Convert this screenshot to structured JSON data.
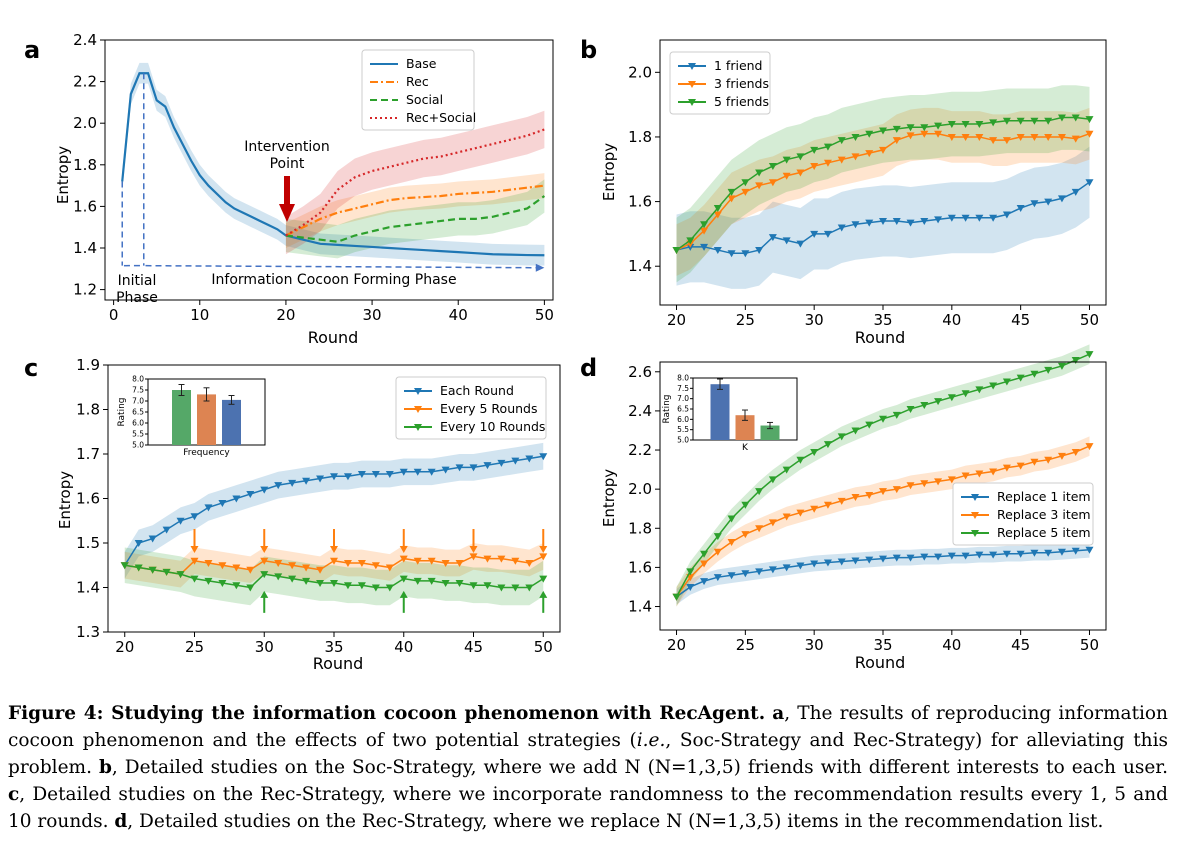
{
  "panels": {
    "a": {
      "letter": "a",
      "ylabel": "Entropy",
      "xlabel": "Round",
      "xticks": [
        "0",
        "10",
        "20",
        "30",
        "40",
        "50"
      ],
      "yticks": [
        "1.2",
        "1.4",
        "1.6",
        "1.8",
        "2.0",
        "2.2",
        "2.4"
      ],
      "annotations": {
        "intervention_line1": "Intervention",
        "intervention_line2": "Point",
        "initial_line1": "Initial",
        "initial_line2": "Phase",
        "forming": "Information Cocoon Forming Phase"
      }
    },
    "b": {
      "letter": "b",
      "ylabel": "Entropy",
      "xlabel": "Round",
      "xticks": [
        "20",
        "25",
        "30",
        "35",
        "40",
        "45",
        "50"
      ],
      "yticks": [
        "1.4",
        "1.6",
        "1.8",
        "2.0"
      ]
    },
    "c": {
      "letter": "c",
      "ylabel": "Entropy",
      "xlabel": "Round",
      "xticks": [
        "20",
        "25",
        "30",
        "35",
        "40",
        "45",
        "50"
      ],
      "yticks": [
        "1.3",
        "1.4",
        "1.5",
        "1.6",
        "1.7",
        "1.8",
        "1.9"
      ],
      "inset": {
        "ylabel": "Rating",
        "xlabel": "Frequency",
        "yticks": [
          "5.0",
          "5.5",
          "6.0",
          "6.5",
          "7.0",
          "7.5",
          "8.0"
        ]
      }
    },
    "d": {
      "letter": "d",
      "ylabel": "Entropy",
      "xlabel": "Round",
      "xticks": [
        "20",
        "25",
        "30",
        "35",
        "40",
        "45",
        "50"
      ],
      "yticks": [
        "1.4",
        "1.6",
        "1.8",
        "2.0",
        "2.2",
        "2.4",
        "2.6"
      ],
      "inset": {
        "ylabel": "Rating",
        "xlabel": "K",
        "yticks": [
          "5.0",
          "5.5",
          "6.0",
          "6.5",
          "7.0",
          "7.5",
          "8.0"
        ]
      }
    }
  },
  "caption": {
    "label": "Figure 4:",
    "title": "Studying the information cocoon phenomenon with RecAgent.",
    "a_letter": "a",
    "a_text": ", The results of reproducing information cocoon phenomenon and the effects of two potential strategies (",
    "ie": "i.e.",
    "a_text2": ", Soc-Strategy and Rec-Strategy) for alleviating this problem.",
    "b_letter": "b",
    "b_text": ", Detailed studies on the Soc-Strategy, where we add N (N=1,3,5) friends with different interests to each user.",
    "c_letter": "c",
    "c_text": ", Detailed studies on the Rec-Strategy, where we incorporate randomness to the recommendation results every 1, 5 and 10 rounds.",
    "d_letter": "d",
    "d_text": ", Detailed studies on the Rec-Strategy, where we replace N (N=1,3,5) items in the recommendation list."
  },
  "chart_data": [
    {
      "panel": "a",
      "type": "line",
      "title": "",
      "xlabel": "Round",
      "ylabel": "Entropy",
      "xlim": [
        -1,
        51
      ],
      "ylim": [
        1.15,
        2.4
      ],
      "legend": "top-right",
      "series": [
        {
          "name": "Base",
          "color": "#1f77b4",
          "style": "solid",
          "x": [
            1,
            2,
            3,
            4,
            5,
            6,
            7,
            8,
            9,
            10,
            11,
            12,
            13,
            14,
            15,
            16,
            17,
            18,
            19,
            20,
            22,
            24,
            26,
            28,
            30,
            32,
            34,
            36,
            38,
            40,
            42,
            44,
            46,
            48,
            50
          ],
          "values": [
            1.72,
            2.14,
            2.24,
            2.24,
            2.11,
            2.08,
            1.98,
            1.9,
            1.82,
            1.75,
            1.7,
            1.66,
            1.62,
            1.59,
            1.57,
            1.55,
            1.53,
            1.51,
            1.49,
            1.46,
            1.44,
            1.42,
            1.415,
            1.41,
            1.405,
            1.4,
            1.395,
            1.39,
            1.385,
            1.38,
            1.375,
            1.37,
            1.368,
            1.366,
            1.365
          ],
          "band": 0.05
        },
        {
          "name": "Rec",
          "color": "#ff7f0e",
          "style": "dashdot",
          "x": [
            20,
            22,
            24,
            26,
            28,
            30,
            32,
            34,
            36,
            38,
            40,
            42,
            44,
            46,
            48,
            50
          ],
          "values": [
            1.46,
            1.5,
            1.54,
            1.57,
            1.59,
            1.61,
            1.63,
            1.64,
            1.645,
            1.65,
            1.66,
            1.665,
            1.67,
            1.68,
            1.69,
            1.7
          ],
          "band": 0.06
        },
        {
          "name": "Social",
          "color": "#2ca02c",
          "style": "dashed",
          "x": [
            20,
            22,
            24,
            26,
            28,
            30,
            32,
            34,
            36,
            38,
            40,
            42,
            44,
            46,
            48,
            50
          ],
          "values": [
            1.46,
            1.45,
            1.44,
            1.43,
            1.46,
            1.48,
            1.5,
            1.51,
            1.52,
            1.53,
            1.54,
            1.54,
            1.55,
            1.57,
            1.59,
            1.65
          ],
          "band": 0.08
        },
        {
          "name": "Rec+Social",
          "color": "#d62728",
          "style": "dotted",
          "x": [
            20,
            22,
            24,
            26,
            28,
            30,
            32,
            34,
            36,
            38,
            40,
            42,
            44,
            46,
            48,
            50
          ],
          "values": [
            1.46,
            1.51,
            1.57,
            1.68,
            1.74,
            1.77,
            1.79,
            1.81,
            1.83,
            1.84,
            1.86,
            1.88,
            1.9,
            1.92,
            1.94,
            1.97
          ],
          "band": 0.09
        }
      ]
    },
    {
      "panel": "b",
      "type": "line",
      "title": "",
      "xlabel": "Round",
      "ylabel": "Entropy",
      "xlim": [
        18.8,
        51.2
      ],
      "ylim": [
        1.28,
        2.1
      ],
      "legend": "top-left",
      "x": [
        20,
        21,
        22,
        23,
        24,
        25,
        26,
        27,
        28,
        29,
        30,
        31,
        32,
        33,
        34,
        35,
        36,
        37,
        38,
        39,
        40,
        41,
        42,
        43,
        44,
        45,
        46,
        47,
        48,
        49,
        50
      ],
      "series": [
        {
          "name": "1 friend",
          "color": "#1f77b4",
          "values": [
            1.45,
            1.46,
            1.46,
            1.45,
            1.44,
            1.44,
            1.45,
            1.49,
            1.48,
            1.47,
            1.5,
            1.5,
            1.52,
            1.53,
            1.535,
            1.54,
            1.54,
            1.535,
            1.54,
            1.545,
            1.55,
            1.55,
            1.55,
            1.55,
            1.56,
            1.58,
            1.595,
            1.6,
            1.61,
            1.63,
            1.66
          ],
          "band": 0.11
        },
        {
          "name": "3 friends",
          "color": "#ff7f0e",
          "values": [
            1.45,
            1.47,
            1.51,
            1.56,
            1.61,
            1.63,
            1.65,
            1.66,
            1.68,
            1.69,
            1.71,
            1.72,
            1.73,
            1.74,
            1.75,
            1.76,
            1.79,
            1.805,
            1.81,
            1.81,
            1.8,
            1.8,
            1.8,
            1.79,
            1.79,
            1.8,
            1.8,
            1.8,
            1.8,
            1.795,
            1.81
          ],
          "band": 0.08
        },
        {
          "name": "5 friends",
          "color": "#2ca02c",
          "values": [
            1.45,
            1.48,
            1.53,
            1.58,
            1.63,
            1.66,
            1.69,
            1.71,
            1.73,
            1.74,
            1.76,
            1.77,
            1.79,
            1.8,
            1.81,
            1.82,
            1.825,
            1.83,
            1.83,
            1.835,
            1.84,
            1.84,
            1.84,
            1.845,
            1.85,
            1.85,
            1.85,
            1.85,
            1.86,
            1.86,
            1.855
          ],
          "band": 0.1
        }
      ]
    },
    {
      "panel": "c",
      "type": "line",
      "title": "",
      "xlabel": "Round",
      "ylabel": "Entropy",
      "xlim": [
        18.8,
        51.2
      ],
      "ylim": [
        1.3,
        1.9
      ],
      "legend": "top-right",
      "x": [
        20,
        21,
        22,
        23,
        24,
        25,
        26,
        27,
        28,
        29,
        30,
        31,
        32,
        33,
        34,
        35,
        36,
        37,
        38,
        39,
        40,
        41,
        42,
        43,
        44,
        45,
        46,
        47,
        48,
        49,
        50
      ],
      "series": [
        {
          "name": "Each Round",
          "color": "#1f77b4",
          "values": [
            1.45,
            1.5,
            1.51,
            1.53,
            1.55,
            1.56,
            1.58,
            1.59,
            1.6,
            1.61,
            1.62,
            1.63,
            1.635,
            1.64,
            1.645,
            1.65,
            1.65,
            1.655,
            1.655,
            1.655,
            1.66,
            1.66,
            1.66,
            1.665,
            1.67,
            1.67,
            1.675,
            1.68,
            1.685,
            1.69,
            1.695
          ],
          "band": 0.03
        },
        {
          "name": "Every 5 Rounds",
          "color": "#ff7f0e",
          "values": [
            1.45,
            1.445,
            1.44,
            1.435,
            1.43,
            1.46,
            1.455,
            1.45,
            1.445,
            1.44,
            1.46,
            1.455,
            1.45,
            1.445,
            1.44,
            1.46,
            1.455,
            1.455,
            1.45,
            1.445,
            1.465,
            1.46,
            1.46,
            1.455,
            1.455,
            1.47,
            1.465,
            1.465,
            1.46,
            1.455,
            1.47
          ],
          "band": 0.03
        },
        {
          "name": "Every 10 Rounds",
          "color": "#2ca02c",
          "values": [
            1.45,
            1.445,
            1.44,
            1.435,
            1.43,
            1.42,
            1.415,
            1.41,
            1.405,
            1.4,
            1.43,
            1.425,
            1.42,
            1.415,
            1.41,
            1.41,
            1.405,
            1.405,
            1.4,
            1.4,
            1.42,
            1.415,
            1.415,
            1.41,
            1.41,
            1.405,
            1.405,
            1.4,
            1.4,
            1.4,
            1.42
          ],
          "band": 0.04
        }
      ],
      "arrows_orange_down_at": [
        25,
        30,
        35,
        40,
        45,
        50
      ],
      "arrows_green_up_at": [
        30,
        40,
        50
      ],
      "inset": {
        "type": "bar",
        "xlabel": "Frequency",
        "ylabel": "Rating",
        "ylim": [
          5.0,
          8.0
        ],
        "bars": [
          {
            "value": 7.5,
            "err": 0.25,
            "color": "#55a868"
          },
          {
            "value": 7.3,
            "err": 0.3,
            "color": "#dd8452"
          },
          {
            "value": 7.05,
            "err": 0.2,
            "color": "#4c72b0"
          }
        ]
      }
    },
    {
      "panel": "d",
      "type": "line",
      "title": "",
      "xlabel": "Round",
      "ylabel": "Entropy",
      "xlim": [
        18.8,
        51.2
      ],
      "ylim": [
        1.28,
        2.65
      ],
      "legend": "center-right",
      "x": [
        20,
        21,
        22,
        23,
        24,
        25,
        26,
        27,
        28,
        29,
        30,
        31,
        32,
        33,
        34,
        35,
        36,
        37,
        38,
        39,
        40,
        41,
        42,
        43,
        44,
        45,
        46,
        47,
        48,
        49,
        50
      ],
      "series": [
        {
          "name": "Replace 1 item",
          "color": "#1f77b4",
          "values": [
            1.45,
            1.5,
            1.53,
            1.55,
            1.56,
            1.57,
            1.58,
            1.59,
            1.6,
            1.61,
            1.62,
            1.625,
            1.63,
            1.635,
            1.64,
            1.645,
            1.65,
            1.65,
            1.655,
            1.655,
            1.66,
            1.66,
            1.665,
            1.665,
            1.67,
            1.67,
            1.675,
            1.675,
            1.68,
            1.685,
            1.69
          ],
          "band": 0.04
        },
        {
          "name": "Replace 3 item",
          "color": "#ff7f0e",
          "values": [
            1.45,
            1.55,
            1.62,
            1.68,
            1.73,
            1.77,
            1.8,
            1.83,
            1.86,
            1.88,
            1.9,
            1.92,
            1.94,
            1.96,
            1.97,
            1.99,
            2.0,
            2.02,
            2.03,
            2.04,
            2.05,
            2.07,
            2.08,
            2.09,
            2.11,
            2.12,
            2.14,
            2.15,
            2.17,
            2.19,
            2.22
          ],
          "band": 0.05
        },
        {
          "name": "Replace 5 item",
          "color": "#2ca02c",
          "values": [
            1.45,
            1.58,
            1.67,
            1.76,
            1.85,
            1.92,
            1.99,
            2.05,
            2.1,
            2.15,
            2.19,
            2.23,
            2.27,
            2.3,
            2.33,
            2.36,
            2.38,
            2.41,
            2.43,
            2.45,
            2.47,
            2.49,
            2.51,
            2.53,
            2.55,
            2.57,
            2.59,
            2.61,
            2.63,
            2.66,
            2.69
          ],
          "band": 0.05
        }
      ],
      "inset": {
        "type": "bar",
        "xlabel": "K",
        "ylabel": "Rating",
        "ylim": [
          5.0,
          8.0
        ],
        "bars": [
          {
            "value": 7.7,
            "err": 0.25,
            "color": "#4c72b0"
          },
          {
            "value": 6.2,
            "err": 0.25,
            "color": "#dd8452"
          },
          {
            "value": 5.7,
            "err": 0.15,
            "color": "#55a868"
          }
        ]
      }
    }
  ]
}
